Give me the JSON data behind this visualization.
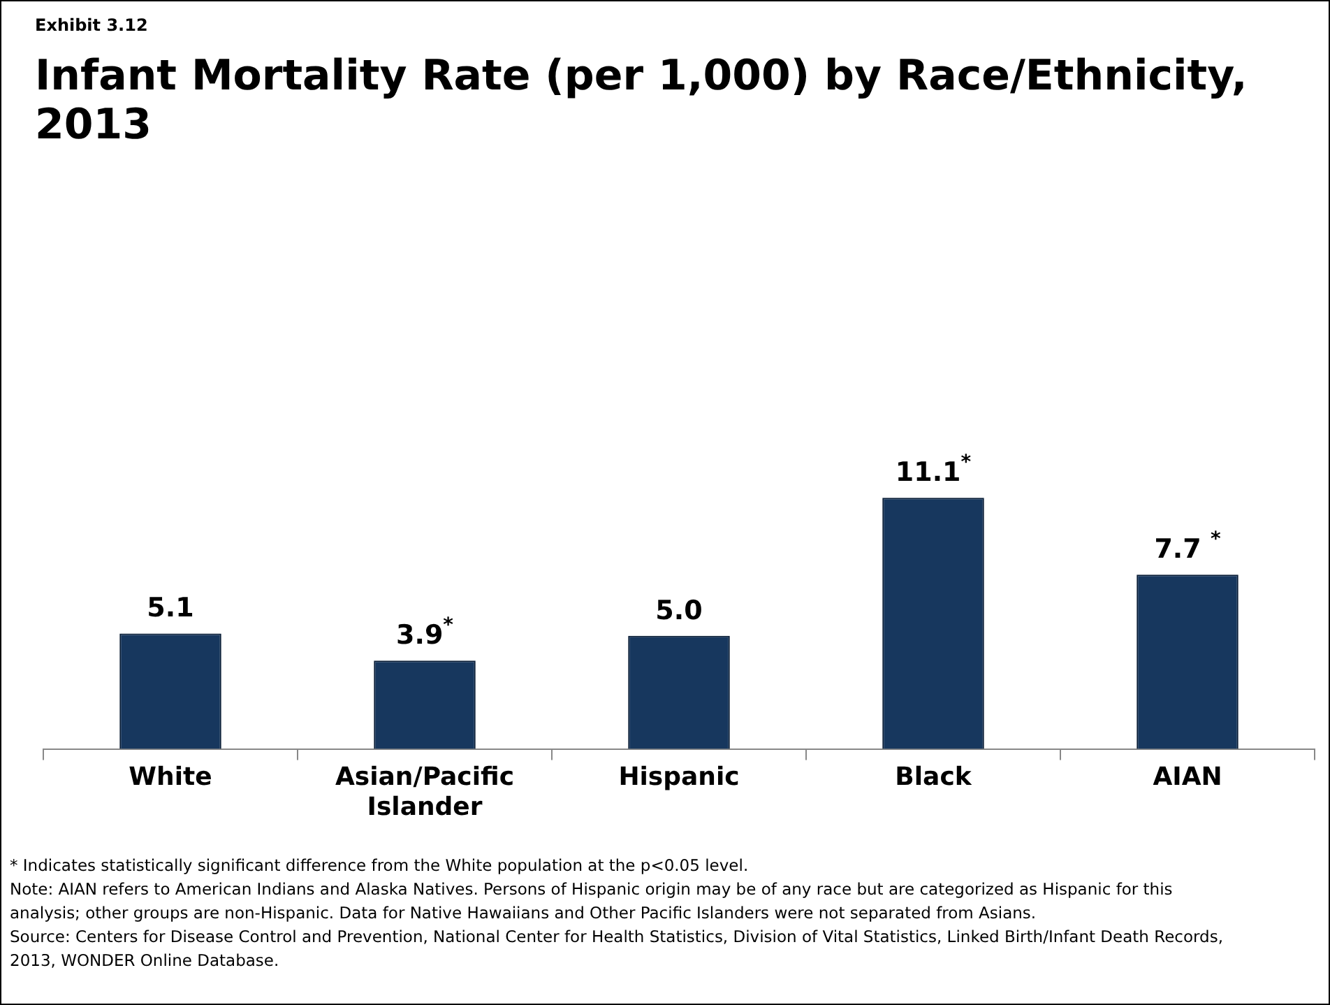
{
  "chart_data": {
    "type": "bar",
    "subtitle": "Exhibit 3.12",
    "title": "Infant Mortality Rate (per 1,000) by Race/Ethnicity, 2013",
    "categories": [
      "White",
      "Asian/Pacific Islander",
      "Hispanic",
      "Black",
      "AIAN"
    ],
    "values": [
      5.1,
      3.9,
      5.0,
      11.1,
      7.7
    ],
    "value_labels": [
      "5.1",
      "3.9$^{*}$",
      "5.0",
      "11.1$^{*}$",
      "7.7 $^{*}$"
    ],
    "color": "#17375e",
    "grid": false,
    "legend": false,
    "annotations": [
      "* Indicates statistically significant difference from the White population at the p<0.05 level.",
      "Note: AIAN refers to American Indians and Alaska Natives. Persons of Hispanic origin may be of any race but are categorized as Hispanic for this analysis; other groups are non-Hispanic. Data for Native Hawaiians and Other Pacific Islanders were not separated from Asians.",
      "Source: Centers for Disease Control and Prevention, National Center for Health Statistics, Division of Vital Statistics, Linked Birth/Infant Death Records, 2013, WONDER Online Database."
    ]
  }
}
